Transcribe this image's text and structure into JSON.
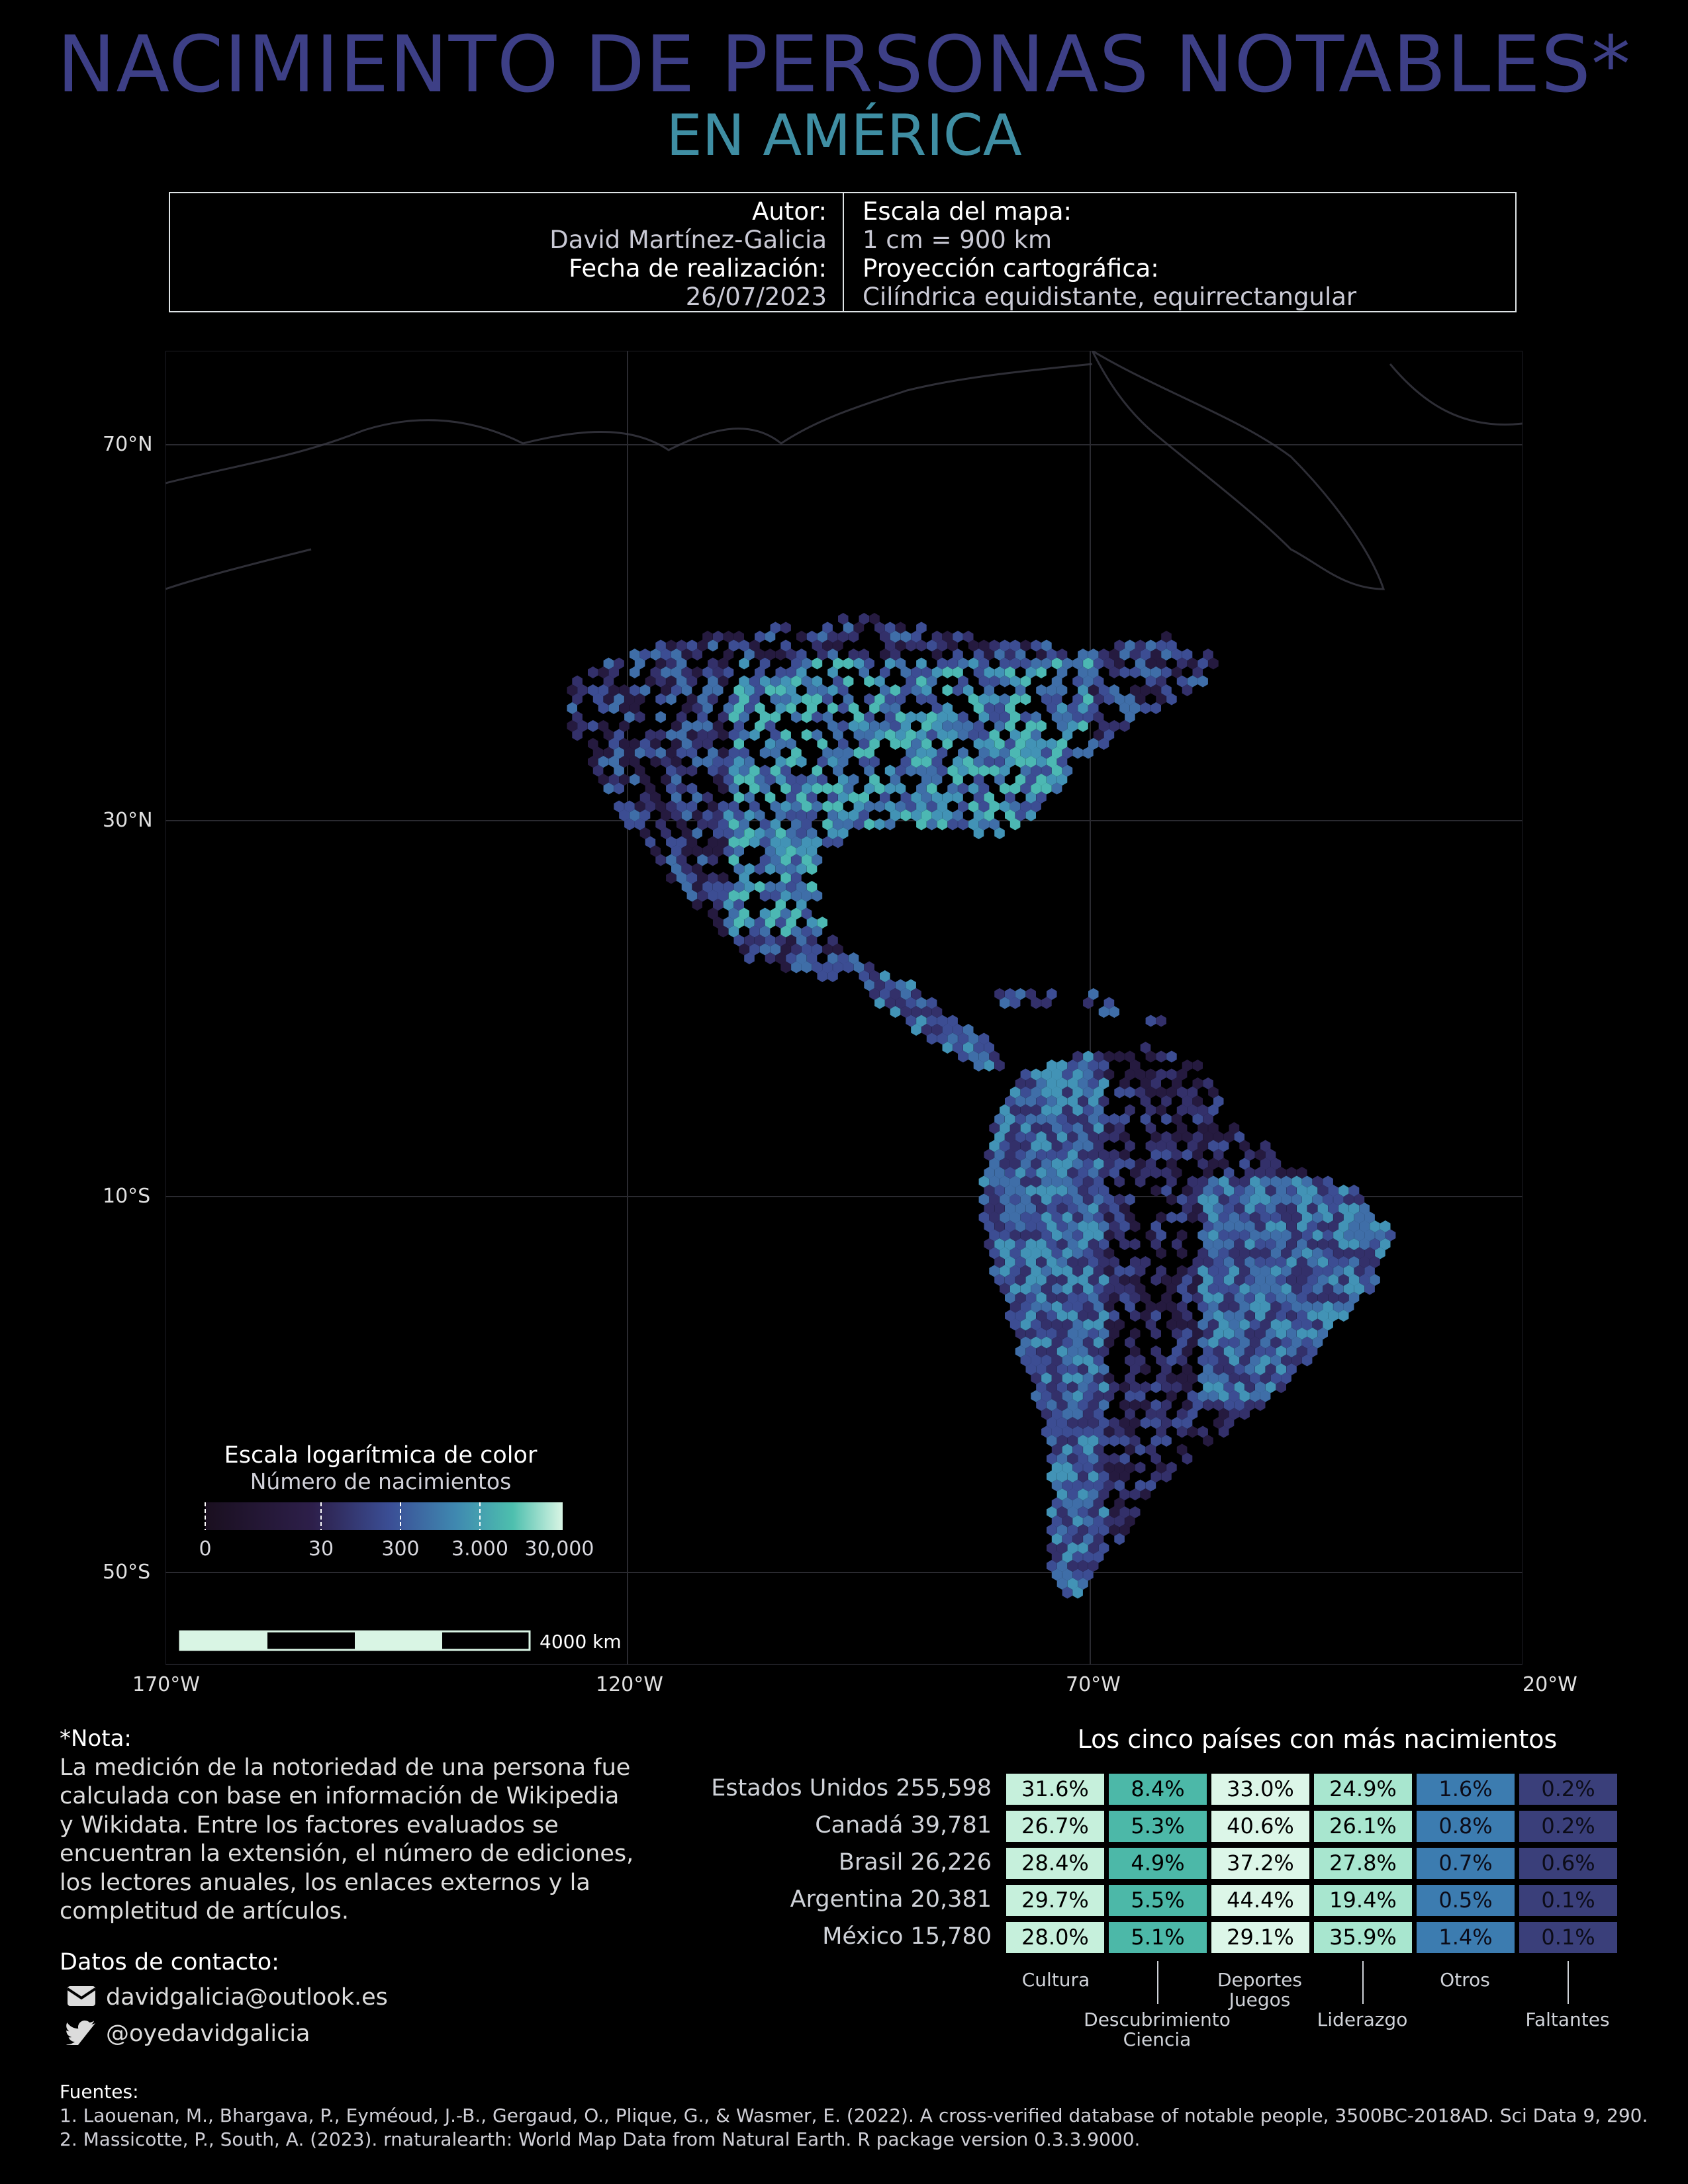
{
  "title": "NACIMIENTO DE PERSONAS NOTABLES*",
  "subtitle": "EN AMÉRICA",
  "info": {
    "author_label": "Autor:",
    "author": "David Martínez-Galicia",
    "date_label": "Fecha de realización:",
    "date": "26/07/2023",
    "scale_label": "Escala del mapa:",
    "scale": "1 cm = 900 km",
    "projection_label": "Proyección cartográfica:",
    "projection": "Cilíndrica equidistante, equirrectangular"
  },
  "map": {
    "lat_labels": [
      "70°N",
      "30°N",
      "10°S",
      "50°S"
    ],
    "lon_labels": [
      "170°W",
      "120°W",
      "70°W",
      "20°W"
    ],
    "legend_title": "Escala logarítmica de color",
    "legend_subtitle": "Número de nacimientos",
    "legend_ticks": [
      "0",
      "30",
      "300",
      "3.000",
      "30,000"
    ],
    "legend_colors": [
      "#1a0f1f",
      "#2d1f4a",
      "#3b4f96",
      "#3f88b0",
      "#4dbfae",
      "#d9f5e4"
    ],
    "scalebar_label": "4000 km",
    "hex_colors": [
      "#251a3f",
      "#33306a",
      "#3c4d93",
      "#3f6ea8",
      "#4293b6",
      "#4cb8b3",
      "#8fd9c8"
    ]
  },
  "note": {
    "heading": "*Nota:",
    "lines": [
      "La medición de la notoriedad de una persona fue",
      "calculada con base en información de Wikipedia",
      "y Wikidata. Entre los factores evaluados se",
      "encuentran la extensión, el número de ediciones,",
      "los lectores anuales, los enlaces externos y la",
      "completitud de artículos."
    ]
  },
  "contact": {
    "heading": "Datos de contacto:",
    "email": "davidgalicia@outlook.es",
    "twitter": "@oyedavidgalicia"
  },
  "sources": {
    "heading": "Fuentes:",
    "items": [
      "1. Laouenan, M., Bhargava, P., Eyméoud, J.-B., Gergaud, O., Plique, G., & Wasmer, E. (2022). A cross-verified database of notable people, 3500BC-2018AD. Sci Data 9, 290.",
      "2. Massicotte, P., South, A. (2023). rnaturalearth: World Map Data from Natural Earth. R package version 0.3.3.9000."
    ]
  },
  "table": {
    "title": "Los cinco países con más nacimientos",
    "column_colors": [
      "#c6f0dc",
      "#4cb8a8",
      "#dcf6e8",
      "#a8e6cf",
      "#3c7cb0",
      "#3a3f7a"
    ],
    "rows": [
      {
        "country": "Estados Unidos 255,598",
        "values": [
          "31.6%",
          "8.4%",
          "33.0%",
          "24.9%",
          "1.6%",
          "0.2%"
        ]
      },
      {
        "country": "Canadá 39,781",
        "values": [
          "26.7%",
          "5.3%",
          "40.6%",
          "26.1%",
          "0.8%",
          "0.2%"
        ]
      },
      {
        "country": "Brasil 26,226",
        "values": [
          "28.4%",
          "4.9%",
          "37.2%",
          "27.8%",
          "0.7%",
          "0.6%"
        ]
      },
      {
        "country": "Argentina 20,381",
        "values": [
          "29.7%",
          "5.5%",
          "44.4%",
          "19.4%",
          "0.5%",
          "0.1%"
        ]
      },
      {
        "country": "México 15,780",
        "values": [
          "28.0%",
          "5.1%",
          "29.1%",
          "35.9%",
          "1.4%",
          "0.1%"
        ]
      }
    ],
    "categories": {
      "cultura": "Cultura",
      "descubrimiento_1": "Descubrimiento",
      "descubrimiento_2": "Ciencia",
      "deportes_1": "Deportes",
      "deportes_2": "Juegos",
      "liderazgo": "Liderazgo",
      "otros": "Otros",
      "faltantes": "Faltantes"
    }
  }
}
